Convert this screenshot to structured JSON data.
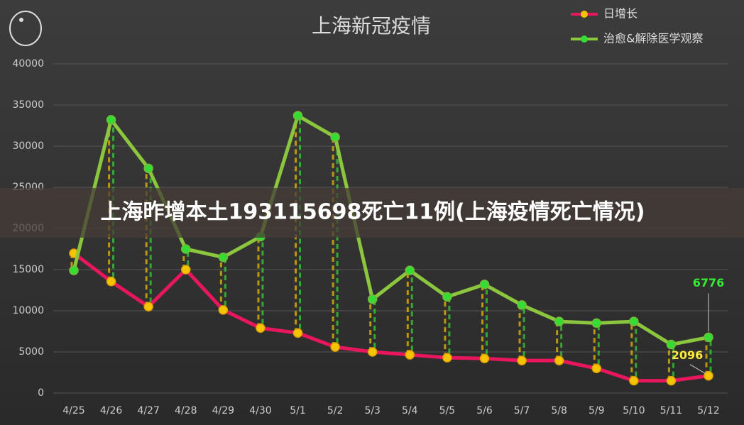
{
  "chart_data": {
    "type": "line",
    "title": "上海新冠疫情",
    "categories": [
      "4/25",
      "4/26",
      "4/27",
      "4/28",
      "4/29",
      "4/30",
      "5/1",
      "5/2",
      "5/3",
      "5/4",
      "5/5",
      "5/6",
      "5/7",
      "5/8",
      "5/9",
      "5/10",
      "5/11",
      "5/12"
    ],
    "series": [
      {
        "name": "日增长",
        "color": "#e8175d",
        "marker_color": "#f5c400",
        "values": [
          16983,
          13562,
          10500,
          14997,
          10100,
          7900,
          7300,
          5600,
          5000,
          4650,
          4300,
          4200,
          3950,
          3950,
          3000,
          1500,
          1500,
          2096
        ],
        "value_labels": [
          null,
          null,
          null,
          null,
          null,
          null,
          null,
          null,
          null,
          null,
          null,
          null,
          null,
          null,
          null,
          null,
          null,
          "2096"
        ],
        "label_color": "#ffeb3b"
      },
      {
        "name": "治愈&解除医学观察",
        "color": "#8cc63f",
        "marker_color": "#33dd33",
        "values": [
          14900,
          33200,
          27300,
          17500,
          16500,
          19000,
          33700,
          31100,
          11400,
          14900,
          11700,
          13200,
          10700,
          8700,
          8500,
          8700,
          5900,
          6776
        ],
        "value_labels": [
          null,
          null,
          null,
          null,
          null,
          null,
          null,
          null,
          null,
          null,
          null,
          null,
          null,
          null,
          null,
          null,
          null,
          "6776"
        ],
        "label_color": "#33ee33"
      }
    ],
    "ylim": [
      0,
      40000
    ],
    "yticks": [
      0,
      5000,
      10000,
      15000,
      20000,
      25000,
      30000,
      35000,
      40000
    ],
    "grid": true
  },
  "overlay_title": "上海昨增本土193115698死亡11例(上海疫情死亡情况)"
}
